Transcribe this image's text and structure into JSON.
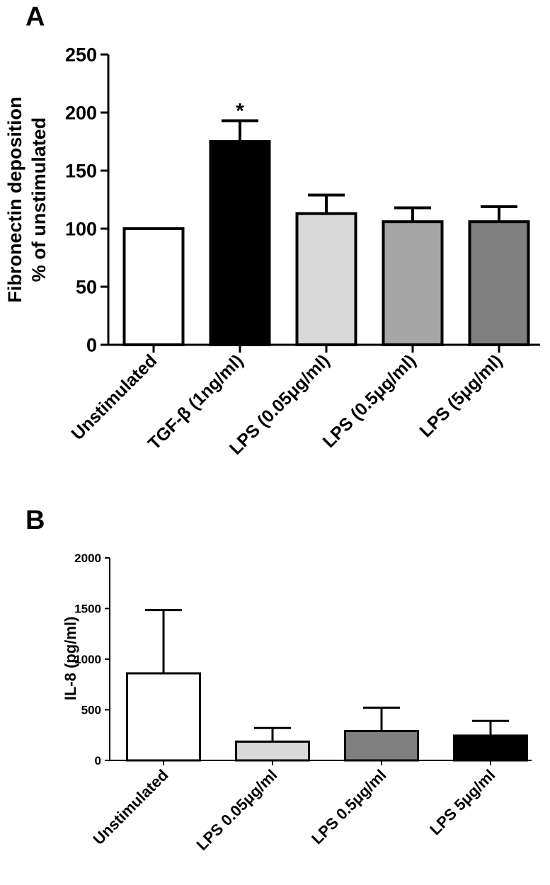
{
  "chart_data": [
    {
      "panel": "A",
      "type": "bar",
      "categories": [
        "Unstimulated",
        "TGF-β (1ng/ml)",
        "LPS (0.05μg/ml)",
        "LPS (0.5μg/ml)",
        "LPS (5μg/ml)"
      ],
      "values": [
        100,
        175,
        113,
        106,
        106
      ],
      "errors": [
        0,
        18,
        16,
        12,
        13
      ],
      "bar_colors": [
        "#ffffff",
        "#000000",
        "#d9d9d9",
        "#a6a6a6",
        "#808080"
      ],
      "annotations": [
        {
          "category": "TGF-β (1ng/ml)",
          "text": "*"
        }
      ],
      "ylabel_line1": "Fibronectin deposition",
      "ylabel_line2": "% of unstimulated",
      "ylim": [
        0,
        250
      ],
      "yticks": [
        0,
        50,
        100,
        150,
        200,
        250
      ],
      "ytick_labels": [
        "0",
        "50",
        "100",
        "150",
        "200",
        "250"
      ],
      "grid": false
    },
    {
      "panel": "B",
      "type": "bar",
      "categories": [
        "Unstimulated",
        "LPS 0.05μg/ml",
        "LPS 0.5μg/ml",
        "LPS 5μg/ml"
      ],
      "values": [
        860,
        185,
        290,
        245
      ],
      "errors": [
        625,
        135,
        230,
        145
      ],
      "bar_colors": [
        "#ffffff",
        "#d9d9d9",
        "#808080",
        "#000000"
      ],
      "ylabel": "IL-8 (pg/ml)",
      "ylim": [
        0,
        2000
      ],
      "yticks": [
        0,
        500,
        1000,
        1500,
        2000
      ],
      "ytick_labels": [
        "0",
        "500",
        "1000",
        "1500",
        "2000"
      ],
      "grid": false
    }
  ]
}
